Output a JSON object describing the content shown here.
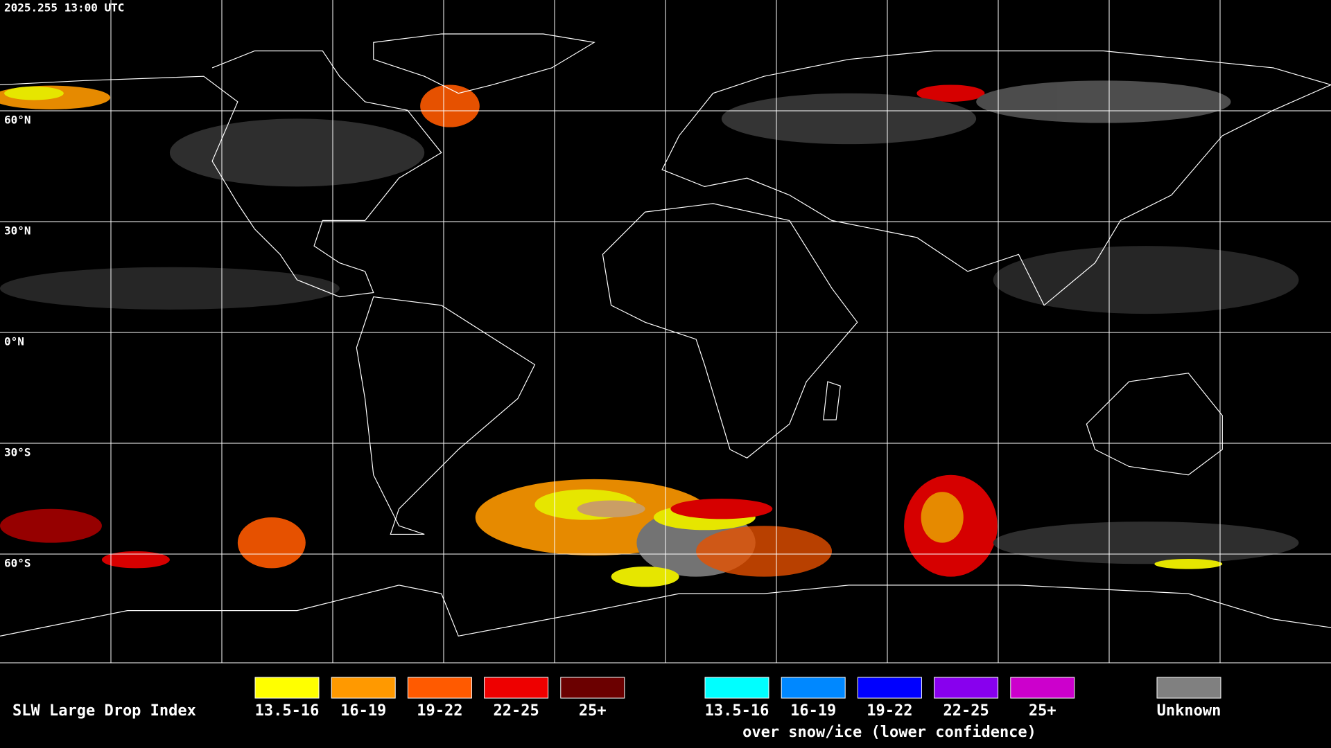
{
  "header": {
    "timestamp": "2025.255 13:00 UTC"
  },
  "map": {
    "lat_labels": [
      "60°N",
      "30°N",
      "0°N",
      "30°S",
      "60°S"
    ]
  },
  "legend": {
    "title": "SLW Large Drop Index",
    "groups": [
      {
        "items": [
          {
            "label": "13.5-16",
            "color": "#ffff00"
          },
          {
            "label": "16-19",
            "color": "#ff9900"
          },
          {
            "label": "19-22",
            "color": "#ff5a00"
          },
          {
            "label": "22-25",
            "color": "#ee0000"
          },
          {
            "label": "25+",
            "color": "#6b0000"
          }
        ]
      },
      {
        "items": [
          {
            "label": "13.5-16",
            "color": "#00ffff"
          },
          {
            "label": "16-19",
            "color": "#0088ff"
          },
          {
            "label": "19-22",
            "color": "#0000ff"
          },
          {
            "label": "22-25",
            "color": "#8800ee"
          },
          {
            "label": "25+",
            "color": "#cc00cc"
          }
        ],
        "note": "over snow/ice (lower confidence)"
      }
    ],
    "unknown": {
      "label": "Unknown",
      "color": "#808080"
    }
  }
}
